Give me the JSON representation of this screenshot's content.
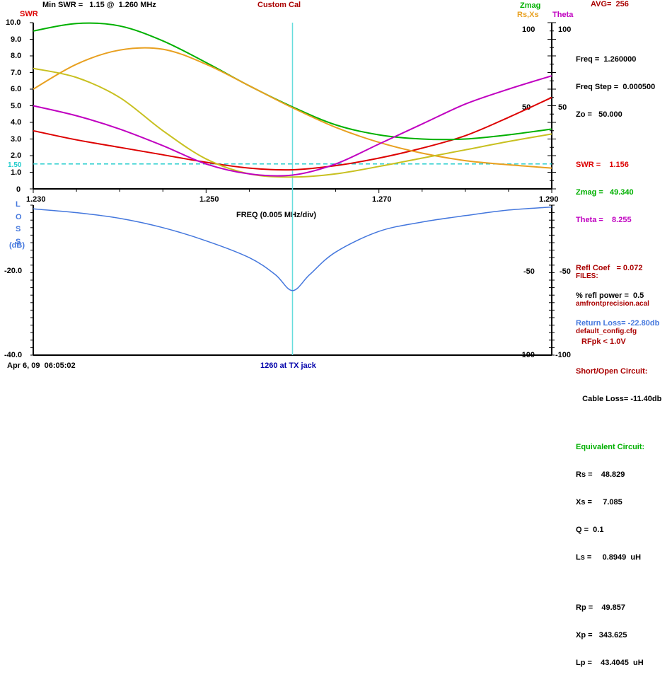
{
  "header": {
    "swr_label": "SWR",
    "min_swr": "Min SWR =   1.15 @  1.260 MHz",
    "cal_mode": "Custom Cal",
    "zmag_label": "Zmag",
    "rsxs_label": "Rs,Xs",
    "theta_label": "Theta",
    "avg": "AVG=  256"
  },
  "colors": {
    "swr": "#dd0000",
    "zmag": "#00b000",
    "rsxs": "#e8a020",
    "theta": "#c000c0",
    "loss": "#4477dd",
    "cursor": "#66dddd",
    "minline": "#22cccc",
    "dark_red": "#aa0000",
    "navy": "#0000aa"
  },
  "upper_left_ticks": [
    "10.0",
    "9.0",
    "8.0",
    "7.0",
    "6.0",
    "5.0",
    "4.0",
    "3.0",
    "2.0",
    "1.0",
    "0"
  ],
  "upper_right_ticks": [
    "100",
    "100",
    "50",
    "50"
  ],
  "min_swr_marker": "1.50",
  "x_ticks": [
    "1.230",
    "1.250",
    "1.270",
    "1.290"
  ],
  "xlabel": "FREQ (0.005 MHz/div)",
  "lower_ylabel": [
    "L",
    "O",
    "S",
    "S",
    "(dB)"
  ],
  "lower_left_ticks": [
    "-20.0",
    "-40.0"
  ],
  "lower_right_ticks": [
    "-50",
    "-50",
    "-100",
    "-100"
  ],
  "footer": {
    "timestamp": "Apr 6, 09  06:05:02",
    "mode": "1260 at TX jack",
    "rfpk": "RFpk < 1.0V"
  },
  "panel": {
    "freq": "Freq =  1.260000",
    "freq_step": "Freq Step =  0.000500",
    "zo": "Zo =   50.000",
    "swr": "SWR =    1.156",
    "zmag": "Zmag =   49.340",
    "theta": "Theta =    8.255",
    "refl_coef": "Refl Coef   = 0.072",
    "refl_power": "% refl power =  0.5",
    "return_loss": "Return Loss= -22.80db",
    "short_open": "Short/Open Circuit:",
    "cable_loss": "   Cable Loss= -11.40db",
    "equiv": "Equivalent Circuit:",
    "rs": "Rs =    48.829",
    "xs": "Xs =     7.085",
    "q": "Q =  0.1",
    "ls": "Ls =     0.8949  uH",
    "rp": "Rp =    49.857",
    "xp": "Xp =   343.625",
    "lp": "Lp =    43.4045  uH",
    "files_label": "FILES:",
    "file1": "amfrontprecision.acal",
    "file2": "default_config.cfg"
  },
  "chart_data": [
    {
      "type": "line",
      "title": "Custom Cal",
      "xlabel": "FREQ (0.005 MHz/div)",
      "xlim": [
        1.23,
        1.29
      ],
      "ylim_left": [
        0,
        10
      ],
      "ylim_right": [
        0,
        100
      ],
      "cursor_x": 1.26,
      "min_swr_line": 1.5,
      "grid": false,
      "series": [
        {
          "name": "SWR",
          "axis": "left",
          "x": [
            1.23,
            1.235,
            1.24,
            1.245,
            1.25,
            1.255,
            1.26,
            1.265,
            1.27,
            1.275,
            1.28,
            1.285,
            1.29
          ],
          "y": [
            3.5,
            2.95,
            2.5,
            2.05,
            1.6,
            1.25,
            1.15,
            1.4,
            1.85,
            2.45,
            3.2,
            4.3,
            5.5
          ]
        },
        {
          "name": "Zmag",
          "axis": "right",
          "x": [
            1.23,
            1.235,
            1.24,
            1.245,
            1.25,
            1.255,
            1.26,
            1.265,
            1.27,
            1.275,
            1.28,
            1.285,
            1.29
          ],
          "y": [
            95,
            99.5,
            98,
            89,
            76,
            62,
            49.3,
            38.5,
            32.5,
            30,
            30,
            32.5,
            36
          ]
        },
        {
          "name": "Rs",
          "axis": "right",
          "x": [
            1.23,
            1.235,
            1.24,
            1.245,
            1.25,
            1.255,
            1.26,
            1.265,
            1.27,
            1.275,
            1.28,
            1.285,
            1.29
          ],
          "y": [
            60,
            75,
            83.5,
            84,
            75,
            62,
            48.8,
            37,
            28,
            21.5,
            17,
            14.5,
            12.5
          ]
        },
        {
          "name": "Xs",
          "axis": "right",
          "x": [
            1.23,
            1.235,
            1.24,
            1.245,
            1.25,
            1.255,
            1.26,
            1.265,
            1.27,
            1.275,
            1.28,
            1.285,
            1.29
          ],
          "y": [
            72.5,
            67,
            55,
            35,
            18,
            9,
            7.1,
            9,
            13.5,
            18.5,
            23.5,
            28.5,
            33
          ]
        },
        {
          "name": "Theta",
          "axis": "right",
          "x": [
            1.23,
            1.235,
            1.24,
            1.245,
            1.25,
            1.255,
            1.26,
            1.265,
            1.27,
            1.275,
            1.28,
            1.285,
            1.29
          ],
          "y": [
            50,
            44,
            36,
            26,
            15,
            9,
            8.3,
            15,
            27,
            39,
            51,
            60,
            68
          ]
        }
      ]
    },
    {
      "type": "line",
      "ylabel": "LOSS (dB)",
      "xlim": [
        1.23,
        1.29
      ],
      "ylim": [
        -40,
        0
      ],
      "ylim_right": [
        -100,
        0
      ],
      "series": [
        {
          "name": "Return Loss",
          "axis": "left",
          "x": [
            1.23,
            1.235,
            1.24,
            1.245,
            1.25,
            1.255,
            1.258,
            1.26,
            1.262,
            1.265,
            1.27,
            1.275,
            1.28,
            1.285,
            1.29
          ],
          "y": [
            -1.0,
            -2.0,
            -3.5,
            -6.0,
            -9.5,
            -14.0,
            -18.5,
            -22.8,
            -18.5,
            -12.5,
            -7.0,
            -4.5,
            -2.8,
            -1.3,
            -0.5
          ]
        }
      ]
    }
  ]
}
